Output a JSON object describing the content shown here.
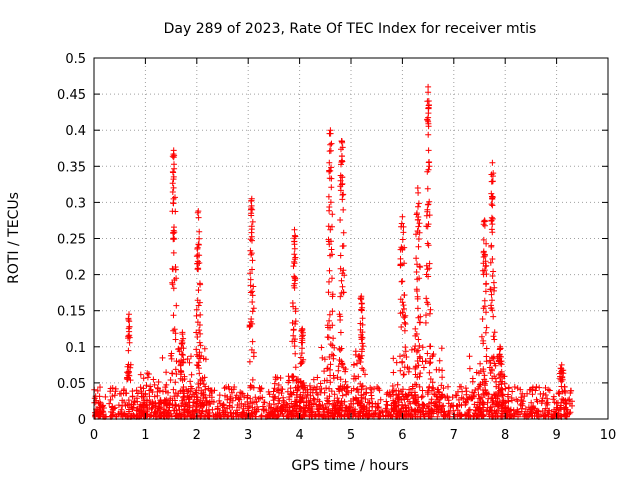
{
  "chart_data": {
    "type": "scatter",
    "title": "Day 289 of 2023, Rate Of TEC Index for receiver mtis",
    "xlabel": "GPS time / hours",
    "ylabel": "ROTI / TECUs",
    "xlim": [
      0,
      10
    ],
    "ylim": [
      0,
      0.5
    ],
    "xticks": [
      0,
      1,
      2,
      3,
      4,
      5,
      6,
      7,
      8,
      9,
      10
    ],
    "yticks": [
      0,
      0.05,
      0.1,
      0.15,
      0.2,
      0.25,
      0.3,
      0.35,
      0.4,
      0.45,
      0.5
    ],
    "xtick_labels": [
      "0",
      "1",
      "2",
      "3",
      "4",
      "5",
      "6",
      "7",
      "8",
      "9",
      "10"
    ],
    "ytick_labels": [
      "0",
      "0.05",
      "0.1",
      "0.15",
      "0.2",
      "0.25",
      "0.3",
      "0.35",
      "0.4",
      "0.45",
      "0.5"
    ],
    "grid": true,
    "marker": "+",
    "marker_color": "#ff0000",
    "data_range_x": [
      0,
      9.3
    ],
    "baseline": {
      "x_start": 0,
      "x_end": 9.3,
      "y_min": 0.003,
      "y_max": 0.045
    },
    "spikes": [
      {
        "x": 0.68,
        "peak": 0.145,
        "width": 0.05
      },
      {
        "x": 1.55,
        "peak": 0.372,
        "width": 0.07
      },
      {
        "x": 1.72,
        "peak": 0.12,
        "width": 0.06
      },
      {
        "x": 2.03,
        "peak": 0.288,
        "width": 0.06
      },
      {
        "x": 3.07,
        "peak": 0.305,
        "width": 0.06
      },
      {
        "x": 3.9,
        "peak": 0.262,
        "width": 0.06
      },
      {
        "x": 4.05,
        "peak": 0.125,
        "width": 0.05
      },
      {
        "x": 4.6,
        "peak": 0.4,
        "width": 0.07
      },
      {
        "x": 4.82,
        "peak": 0.385,
        "width": 0.07
      },
      {
        "x": 5.2,
        "peak": 0.17,
        "width": 0.06
      },
      {
        "x": 6.0,
        "peak": 0.28,
        "width": 0.09
      },
      {
        "x": 6.3,
        "peak": 0.32,
        "width": 0.08
      },
      {
        "x": 6.5,
        "peak": 0.46,
        "width": 0.06
      },
      {
        "x": 7.6,
        "peak": 0.275,
        "width": 0.08
      },
      {
        "x": 7.75,
        "peak": 0.355,
        "width": 0.06
      },
      {
        "x": 7.9,
        "peak": 0.1,
        "width": 0.06
      },
      {
        "x": 9.1,
        "peak": 0.075,
        "width": 0.08
      }
    ],
    "elevated_bands": [
      {
        "x_start": 1.3,
        "x_end": 2.2,
        "y_max": 0.1
      },
      {
        "x_start": 4.3,
        "x_end": 5.3,
        "y_max": 0.1
      },
      {
        "x_start": 5.7,
        "x_end": 6.8,
        "y_max": 0.1
      },
      {
        "x_start": 0.9,
        "x_end": 1.3,
        "y_max": 0.065
      },
      {
        "x_start": 3.5,
        "x_end": 4.3,
        "y_max": 0.06
      },
      {
        "x_start": 7.3,
        "x_end": 8.0,
        "y_max": 0.09
      }
    ]
  }
}
